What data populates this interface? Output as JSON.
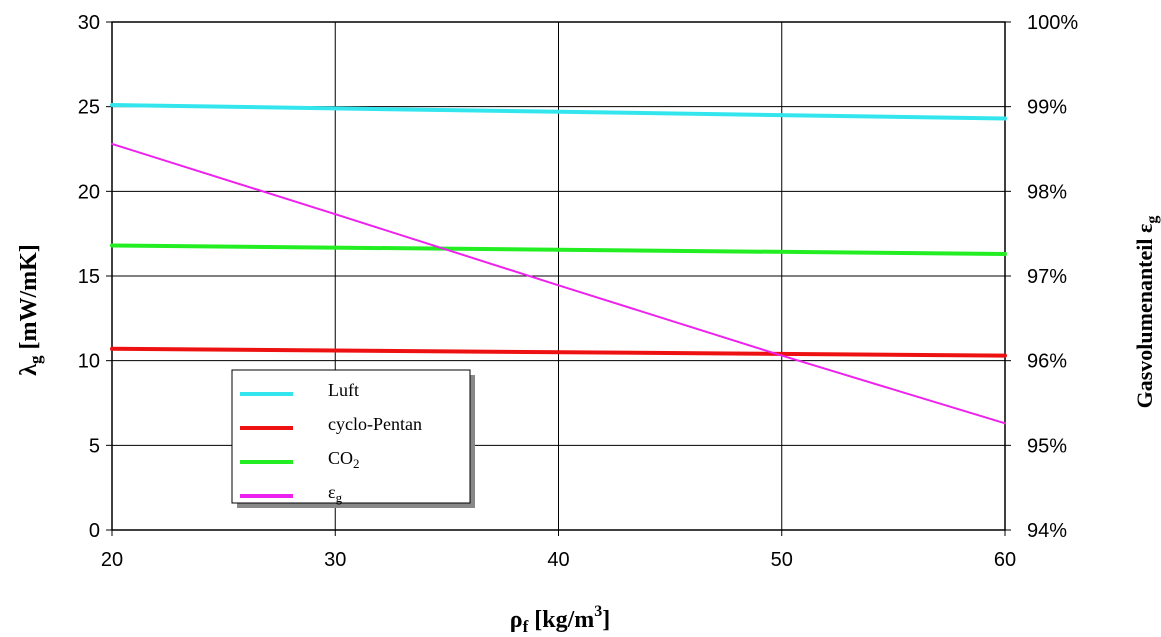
{
  "chart_data": {
    "type": "line",
    "x_ticks": [
      "20",
      "30",
      "40",
      "50",
      "60"
    ],
    "y_ticks": [
      "0",
      "5",
      "10",
      "15",
      "20",
      "25",
      "30"
    ],
    "y2_ticks": [
      "94%",
      "95%",
      "96%",
      "97%",
      "98%",
      "99%",
      "100%"
    ],
    "xlim": [
      20,
      60
    ],
    "ylim": [
      0,
      30
    ],
    "y2lim": [
      0.94,
      1.0
    ],
    "grid": true,
    "legend_position": "lower-left",
    "xlabel": {
      "main": "ρ",
      "sub": "f",
      "unit_pre": " [kg/m",
      "sup": "3",
      "unit_post": "]"
    },
    "ylabel": {
      "main": "λ",
      "sub": "g",
      "unit": " [mW/mK]"
    },
    "y2label": {
      "main": "Gasvolumenanteil ε",
      "sub": "g"
    },
    "series": [
      {
        "name": "Luft",
        "name_sub": "",
        "color": "#33e6ee",
        "axis": "left",
        "x": [
          20,
          60
        ],
        "y": [
          25.1,
          24.3
        ]
      },
      {
        "name": "cyclo-Pentan",
        "name_sub": "",
        "color": "#ee1111",
        "axis": "left",
        "x": [
          20,
          60
        ],
        "y": [
          10.7,
          10.3
        ]
      },
      {
        "name": "CO",
        "name_sub": "2",
        "color": "#22ee22",
        "axis": "left",
        "x": [
          20,
          60
        ],
        "y": [
          16.8,
          16.3
        ]
      },
      {
        "name": "ε",
        "name_sub": "g",
        "color": "#ee22ee",
        "axis": "right",
        "x": [
          20,
          30,
          40,
          50,
          60
        ],
        "y": [
          0.9856,
          0.9773,
          0.9689,
          0.9606,
          0.9526
        ]
      }
    ]
  }
}
